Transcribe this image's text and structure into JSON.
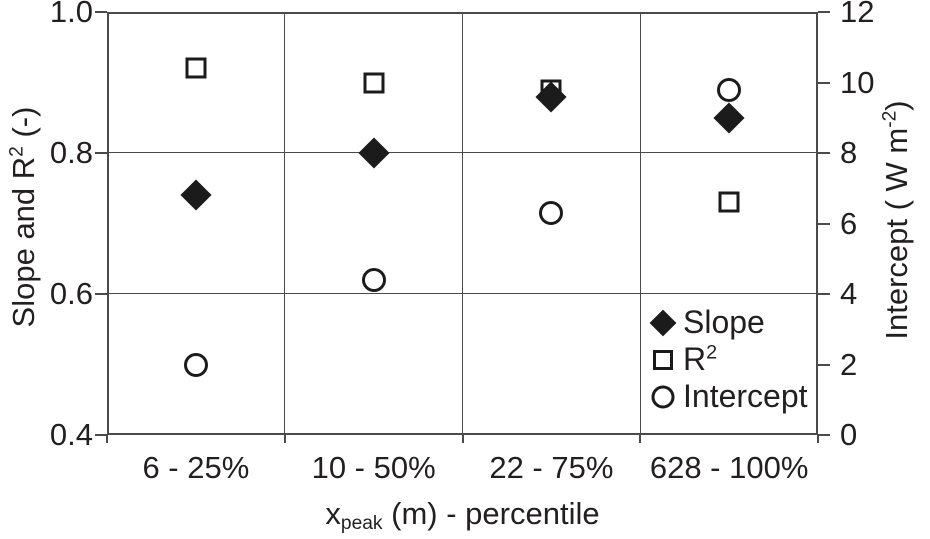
{
  "chart_data": {
    "type": "scatter",
    "categories": [
      "6 - 25%",
      "10 - 50%",
      "22 - 75%",
      "628 - 100%"
    ],
    "series": [
      {
        "id": "slope",
        "name_pre": "Slope",
        "name_sup": "",
        "marker": "diamond",
        "axis": "left",
        "values": [
          0.74,
          0.8,
          0.88,
          0.85
        ]
      },
      {
        "id": "r2",
        "name_pre": "R",
        "name_sup": "2",
        "marker": "square",
        "axis": "left",
        "values": [
          0.92,
          0.9,
          0.89,
          0.73
        ]
      },
      {
        "id": "intercept",
        "name_pre": "Intercept",
        "name_sup": "",
        "marker": "circle",
        "axis": "right",
        "values": [
          2.0,
          4.4,
          6.3,
          9.8
        ]
      }
    ],
    "left_axis": {
      "label_pre": "Slope and R",
      "label_sup": "2",
      "label_post": " (-)",
      "min": 0.4,
      "max": 1.0,
      "tick_values": [
        1.0,
        0.8,
        0.6,
        0.4
      ],
      "tick_labels": [
        "1.0",
        "0.8",
        "0.6",
        "0.4"
      ]
    },
    "right_axis": {
      "label_pre": "Intercept ( W m",
      "label_sup": "-2",
      "label_post": ")",
      "min": 0,
      "max": 12,
      "tick_values": [
        12,
        10,
        8,
        6,
        4,
        2,
        0
      ],
      "tick_labels": [
        "12",
        "10",
        "8",
        "6",
        "4",
        "2",
        "0"
      ]
    },
    "x_axis": {
      "label_pre": "x",
      "label_sub": "peak",
      "label_post": " (m) - percentile"
    },
    "legend_position": "inside-bottom-right",
    "grid": true
  },
  "colors": {
    "line": "#4a4a4a",
    "marker": "#1b1b1b",
    "text": "#231f20",
    "background": "#ffffff"
  }
}
